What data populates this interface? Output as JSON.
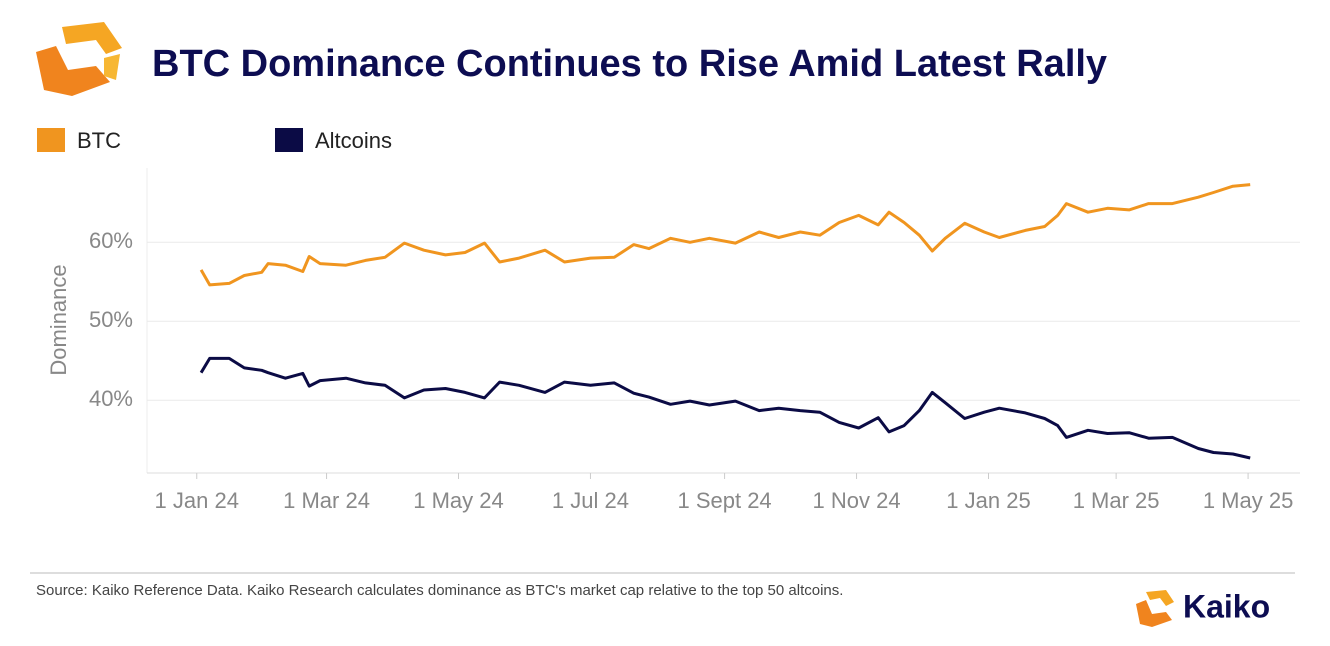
{
  "chart_data": {
    "type": "line",
    "title": "BTC Dominance Continues to Rise Amid Latest Rally",
    "y_label": "Dominance",
    "source": "Source: Kaiko Reference Data. Kaiko Research calculates dominance as BTC's market cap relative to the top 50 altcoins.",
    "brand": "Kaiko",
    "x": [
      "2024-01-03",
      "2024-01-07",
      "2024-01-16",
      "2024-01-23",
      "2024-01-31",
      "2024-02-03",
      "2024-02-11",
      "2024-02-19",
      "2024-02-22",
      "2024-02-27",
      "2024-03-10",
      "2024-03-19",
      "2024-03-28",
      "2024-04-06",
      "2024-04-15",
      "2024-04-25",
      "2024-05-04",
      "2024-05-13",
      "2024-05-20",
      "2024-05-29",
      "2024-06-10",
      "2024-06-19",
      "2024-07-01",
      "2024-07-12",
      "2024-07-21",
      "2024-07-28",
      "2024-08-07",
      "2024-08-16",
      "2024-08-25",
      "2024-09-06",
      "2024-09-17",
      "2024-09-26",
      "2024-10-06",
      "2024-10-15",
      "2024-10-24",
      "2024-11-02",
      "2024-11-11",
      "2024-11-16",
      "2024-11-23",
      "2024-11-30",
      "2024-12-06",
      "2024-12-12",
      "2024-12-21",
      "2024-12-30",
      "2025-01-06",
      "2025-01-18",
      "2025-01-27",
      "2025-02-02",
      "2025-02-06",
      "2025-02-16",
      "2025-02-25",
      "2025-03-07",
      "2025-03-16",
      "2025-03-27",
      "2025-04-08",
      "2025-04-15",
      "2025-04-24",
      "2025-05-02"
    ],
    "series": [
      {
        "name": "BTC",
        "color": "#f0951f",
        "values": [
          56.5,
          54.6,
          54.8,
          55.8,
          56.2,
          57.3,
          57.1,
          56.3,
          58.2,
          57.3,
          57.1,
          57.7,
          58.1,
          59.9,
          59.0,
          58.4,
          58.7,
          59.9,
          57.5,
          58.0,
          59.0,
          57.5,
          58.0,
          58.1,
          59.7,
          59.2,
          60.5,
          60.0,
          60.5,
          59.9,
          61.3,
          60.6,
          61.3,
          60.9,
          62.5,
          63.4,
          62.2,
          63.8,
          62.5,
          60.9,
          58.9,
          60.5,
          62.4,
          61.3,
          60.6,
          61.5,
          62.0,
          63.4,
          64.9,
          63.8,
          64.3,
          64.1,
          64.9,
          64.9,
          65.7,
          66.3,
          67.1,
          67.3
        ]
      },
      {
        "name": "Altcoins",
        "color": "#0b0b45",
        "values": [
          43.5,
          45.3,
          45.3,
          44.1,
          43.8,
          43.5,
          42.8,
          43.4,
          41.8,
          42.5,
          42.8,
          42.2,
          41.9,
          40.3,
          41.3,
          41.5,
          41.0,
          40.3,
          42.3,
          41.9,
          41.0,
          42.3,
          41.9,
          42.2,
          40.9,
          40.4,
          39.5,
          39.9,
          39.4,
          39.9,
          38.7,
          39.0,
          38.7,
          38.5,
          37.2,
          36.5,
          37.8,
          36.0,
          36.8,
          38.7,
          41.0,
          39.7,
          37.7,
          38.5,
          39.0,
          38.4,
          37.7,
          36.8,
          35.3,
          36.2,
          35.8,
          35.9,
          35.2,
          35.3,
          33.9,
          33.4,
          33.2,
          32.7
        ]
      }
    ],
    "xlim": [
      "2023-12-09",
      "2025-05-25"
    ],
    "xticks": [
      {
        "value": "2024-01-01",
        "label": "1 Jan 24"
      },
      {
        "value": "2024-03-01",
        "label": "1 Mar 24"
      },
      {
        "value": "2024-05-01",
        "label": "1 May 24"
      },
      {
        "value": "2024-07-01",
        "label": "1 Jul 24"
      },
      {
        "value": "2024-09-01",
        "label": "1 Sept 24"
      },
      {
        "value": "2024-11-01",
        "label": "1 Nov 24"
      },
      {
        "value": "2025-01-01",
        "label": "1 Jan 25"
      },
      {
        "value": "2025-03-01",
        "label": "1 Mar 25"
      },
      {
        "value": "2025-05-01",
        "label": "1 May 25"
      }
    ],
    "ylim": [
      30.8,
      69.4
    ],
    "yticks": [
      {
        "value": 40,
        "label": "40%"
      },
      {
        "value": 50,
        "label": "50%"
      },
      {
        "value": 60,
        "label": "60%"
      }
    ],
    "grid": true
  }
}
